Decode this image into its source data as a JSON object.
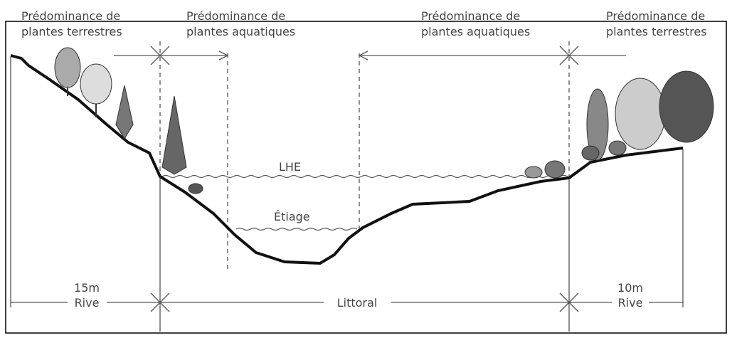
{
  "zones": [
    {
      "line1": "Prédominance de",
      "line2": "plantes terrestres"
    },
    {
      "line1": "Prédominance de",
      "line2": "plantes  aquatiques"
    },
    {
      "line1": "Prédominance de",
      "line2": "plantes aquatiques"
    },
    {
      "line1": "Prédominance de",
      "line2": "plantes terrestres"
    }
  ],
  "levels": {
    "high": "LHE",
    "low": "Étiage"
  },
  "bottom": {
    "left_width": "15m",
    "left_label": "Rive",
    "middle_label": "Littoral",
    "right_width": "10m",
    "right_label": "Rive"
  }
}
